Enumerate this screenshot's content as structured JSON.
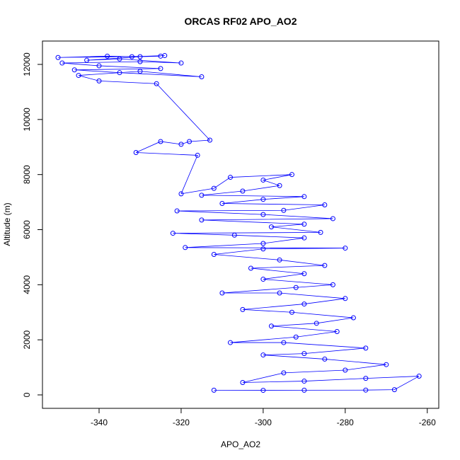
{
  "chart_data": {
    "type": "line",
    "markers": true,
    "title": "ORCAS RF02 APO_AO2",
    "xlabel": "APO_AO2",
    "ylabel": "Altitude (m)",
    "color": "#0000ff",
    "x": [
      -312,
      -300,
      -290,
      -275,
      -268,
      -262,
      -275,
      -290,
      -305,
      -295,
      -280,
      -270,
      -285,
      -300,
      -290,
      -275,
      -295,
      -308,
      -292,
      -282,
      -298,
      -287,
      -278,
      -293,
      -305,
      -290,
      -280,
      -296,
      -310,
      -292,
      -283,
      -300,
      -290,
      -303,
      -285,
      -296,
      -312,
      -300,
      -280,
      -319,
      -300,
      -290,
      -307,
      -322,
      -286,
      -298,
      -290,
      -315,
      -283,
      -300,
      -321,
      -295,
      -285,
      -310,
      -300,
      -290,
      -315,
      -305,
      -296,
      -300,
      -293,
      -308,
      -312,
      -320,
      -316,
      -331,
      -325,
      -320,
      -318,
      -313,
      -326,
      -340,
      -345,
      -330,
      -315,
      -335,
      -346,
      -325,
      -340,
      -349,
      -330,
      -320,
      -335,
      -343,
      -330,
      -325,
      -350,
      -338,
      -332,
      -324
    ],
    "y": [
      170,
      165,
      170,
      175,
      190,
      680,
      600,
      500,
      450,
      800,
      900,
      1100,
      1300,
      1450,
      1500,
      1700,
      1900,
      1900,
      2100,
      2300,
      2500,
      2600,
      2800,
      3000,
      3100,
      3300,
      3500,
      3700,
      3700,
      3900,
      4000,
      4200,
      4400,
      4600,
      4700,
      4900,
      5100,
      5300,
      5330,
      5350,
      5500,
      5700,
      5800,
      5870,
      5900,
      6100,
      6200,
      6350,
      6400,
      6550,
      6680,
      6700,
      6900,
      6950,
      7100,
      7200,
      7250,
      7400,
      7600,
      7800,
      8000,
      7900,
      7500,
      7300,
      8700,
      8800,
      9200,
      9100,
      9200,
      9250,
      11300,
      11400,
      11600,
      11750,
      11550,
      11700,
      11800,
      11850,
      11950,
      12050,
      12100,
      12050,
      12200,
      12150,
      12280,
      12300,
      12250,
      12300,
      12280,
      12320
    ],
    "xlim": [
      -353.8,
      -257.2
    ],
    "ylim": [
      -488,
      12848
    ],
    "xticks": [
      -340,
      -320,
      -300,
      -280,
      -260
    ],
    "yticks": [
      0,
      2000,
      4000,
      6000,
      8000,
      10000,
      12000
    ]
  }
}
